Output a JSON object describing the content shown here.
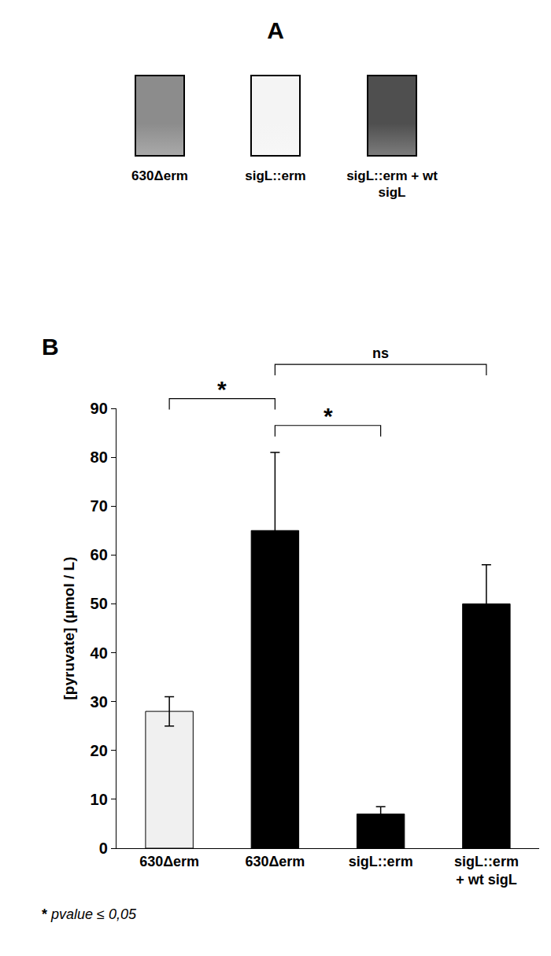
{
  "panel_a": {
    "label": "A",
    "samples": [
      "630Δerm",
      "sigL::erm",
      "sigL::erm + wt sigL"
    ],
    "colors": [
      "#8c8c8c",
      "#f4f4f4",
      "#4f4f4f"
    ]
  },
  "chart_data": {
    "type": "bar",
    "panel_label": "B",
    "categories": [
      "630Δerm",
      "630Δerm",
      "sigL::erm",
      "sigL::erm + wt sigL"
    ],
    "values": [
      28,
      65,
      7,
      50
    ],
    "errors": [
      3,
      16,
      1.5,
      8
    ],
    "colors": [
      "#f0f0f0",
      "#000000",
      "#000000",
      "#000000"
    ],
    "y_label": "[pyruvate] (µmol / L)",
    "ylim": [
      0,
      90
    ],
    "yticks": [
      0,
      10,
      20,
      30,
      40,
      50,
      60,
      70,
      80,
      90
    ],
    "grid": false,
    "significance": [
      {
        "from": 0,
        "to": 1,
        "y": 92,
        "label": "*"
      },
      {
        "from": 1,
        "to": 2,
        "y": 86.5,
        "label": "*"
      },
      {
        "from": 1,
        "to": 3,
        "y": 99,
        "label": "ns"
      }
    ],
    "footnote": "* pvalue ≤ 0,05"
  }
}
